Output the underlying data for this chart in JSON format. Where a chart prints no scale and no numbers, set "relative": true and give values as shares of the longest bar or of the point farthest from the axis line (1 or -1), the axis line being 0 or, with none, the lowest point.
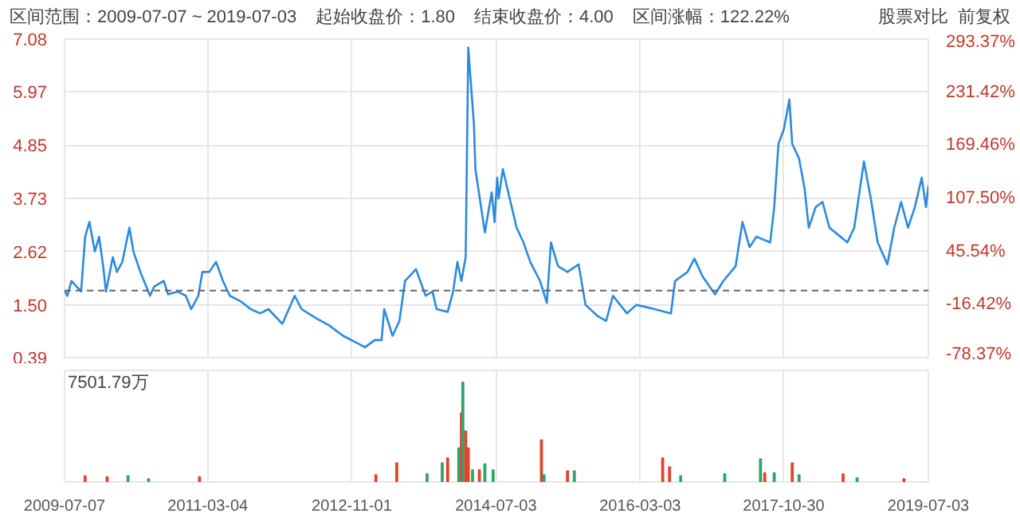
{
  "chart_data": [
    {
      "type": "line",
      "title": "区间范围：2009-07-07 ~ 2019-07-03",
      "annotations": [
        "起始收盘价：1.80",
        "结束收盘价：4.00",
        "区间涨幅：122.22%",
        "股票对比",
        "前复权"
      ],
      "x": [
        "2009-07-07",
        "2009-07-19",
        "2009-08-05",
        "2009-09-15",
        "2009-10-02",
        "2009-10-20",
        "2009-11-12",
        "2009-11-30",
        "2009-12-17",
        "2009-12-29",
        "2010-01-27",
        "2010-02-13",
        "2010-03-08",
        "2010-04-07",
        "2010-04-24",
        "2010-05-23",
        "2010-07-03",
        "2010-07-20",
        "2010-08-30",
        "2010-09-17",
        "2010-10-27",
        "2010-12-01",
        "2010-12-24",
        "2011-01-23",
        "2011-02-09",
        "2011-03-10",
        "2011-04-08",
        "2011-05-07",
        "2011-06-05",
        "2011-07-22",
        "2011-09-01",
        "2011-10-11",
        "2011-11-15",
        "2012-01-13",
        "2012-03-05",
        "2012-04-03",
        "2012-05-31",
        "2012-07-28",
        "2012-09-25",
        "2012-11-22",
        "2012-12-27",
        "2013-02-06",
        "2013-03-07",
        "2013-03-18",
        "2013-04-22",
        "2013-05-21",
        "2013-06-14",
        "2013-07-30",
        "2013-09-09",
        "2013-10-08",
        "2013-10-25",
        "2013-12-11",
        "2014-01-03",
        "2014-01-21",
        "2014-02-07",
        "2014-02-25",
        "2014-03-08",
        "2014-04-01",
        "2014-04-07",
        "2014-05-17",
        "2014-06-15",
        "2014-06-27",
        "2014-07-08",
        "2014-07-14",
        "2014-08-01",
        "2014-08-30",
        "2014-09-28",
        "2014-10-27",
        "2014-11-25",
        "2015-01-05",
        "2015-02-03",
        "2015-02-20",
        "2015-03-22",
        "2015-05-01",
        "2015-06-17",
        "2015-07-16",
        "2015-09-06",
        "2015-10-11",
        "2015-11-09",
        "2016-01-07",
        "2016-02-16",
        "2016-05-02",
        "2016-07-11",
        "2016-07-28",
        "2016-09-19",
        "2016-10-18",
        "2016-11-22",
        "2017-01-13",
        "2017-02-17",
        "2017-04-10",
        "2017-05-09",
        "2017-06-08",
        "2017-07-07",
        "2017-09-03",
        "2017-09-20",
        "2017-10-08",
        "2017-10-31",
        "2017-11-23",
        "2017-12-05",
        "2018-01-03",
        "2018-01-26",
        "2018-02-13",
        "2018-03-14",
        "2018-04-12",
        "2018-05-11",
        "2018-06-27",
        "2018-07-26",
        "2018-08-24",
        "2018-10-04",
        "2018-11-02",
        "2018-12-01",
        "2019-01-11",
        "2019-02-09",
        "2019-03-10",
        "2019-04-08",
        "2019-05-07",
        "2019-06-05",
        "2019-06-23",
        "2019-07-03"
      ],
      "series": [
        {
          "color": "#2a8ae0",
          "values": [
            1.8,
            1.69,
            2.0,
            1.78,
            2.93,
            3.24,
            2.62,
            2.93,
            2.31,
            1.78,
            2.5,
            2.19,
            2.4,
            3.12,
            2.62,
            2.19,
            1.69,
            1.88,
            2.0,
            1.72,
            1.78,
            1.69,
            1.41,
            1.69,
            2.19,
            2.19,
            2.4,
            2.0,
            1.69,
            1.57,
            1.41,
            1.32,
            1.41,
            1.1,
            1.69,
            1.41,
            1.23,
            1.07,
            0.85,
            0.7,
            0.61,
            0.76,
            0.76,
            1.41,
            0.85,
            1.16,
            2.0,
            2.25,
            1.69,
            1.78,
            1.41,
            1.35,
            1.78,
            2.4,
            2.0,
            2.5,
            6.9,
            5.28,
            4.35,
            3.02,
            3.86,
            3.24,
            4.17,
            3.73,
            4.35,
            3.73,
            3.12,
            2.81,
            2.4,
            2.0,
            1.54,
            2.81,
            2.31,
            2.19,
            2.35,
            1.5,
            1.26,
            1.16,
            1.69,
            1.32,
            1.5,
            1.41,
            1.32,
            2.0,
            2.19,
            2.47,
            2.09,
            1.72,
            2.0,
            2.31,
            3.24,
            2.71,
            2.93,
            2.81,
            3.55,
            4.88,
            5.19,
            5.81,
            4.88,
            4.57,
            3.95,
            3.12,
            3.55,
            3.66,
            3.12,
            2.93,
            2.81,
            3.12,
            4.51,
            3.73,
            2.81,
            2.35,
            3.12,
            3.66,
            3.12,
            3.55,
            4.17,
            3.55,
            4.0
          ]
        }
      ],
      "xlim": [
        "2009-07-07",
        "2019-07-03"
      ],
      "xticks": [
        "2009-07-07",
        "2011-03-04",
        "2012-11-01",
        "2014-07-03",
        "2016-03-03",
        "2017-10-30",
        "2019-07-03"
      ],
      "ylim": [
        0.39,
        7.08
      ],
      "yticks": [
        0.39,
        {
          "value": 1.5,
          "label": "1.50"
        },
        2.62,
        3.73,
        4.85,
        5.97,
        7.08
      ],
      "y2lim": [
        -78.37,
        293.37
      ],
      "y2ticks": [
        {
          "value": -78.37,
          "label": "-78.37%"
        },
        {
          "value": -16.42,
          "label": "-16.42%"
        },
        {
          "value": 45.54,
          "label": "45.54%"
        },
        {
          "value": 107.5,
          "label": "107.50%"
        },
        {
          "value": 169.46,
          "label": "169.46%"
        },
        {
          "value": 231.42,
          "label": "231.42%"
        },
        {
          "value": 293.37,
          "label": "293.37%"
        }
      ],
      "ref_lines": [
        {
          "axis": "y",
          "value": 1.8,
          "color": "#666666",
          "line_style": "dashed"
        }
      ],
      "grid": true,
      "tick_labels": "y"
    },
    {
      "type": "bar",
      "relative": true,
      "annotations": [
        "7501.79万"
      ],
      "x": [
        "2009-10-02",
        "2010-01-03",
        "2010-04-01",
        "2010-06-27",
        "2011-01-28",
        "2013-02-11",
        "2013-05-10",
        "2013-09-15",
        "2013-11-18",
        "2013-12-11",
        "2014-01-27",
        "2014-02-07",
        "2014-02-13",
        "2014-02-25",
        "2014-03-08",
        "2014-03-26",
        "2014-04-24",
        "2014-05-17",
        "2014-06-21",
        "2015-01-11",
        "2015-01-22",
        "2015-05-01",
        "2015-05-30",
        "2016-06-06",
        "2016-07-05",
        "2016-08-21",
        "2017-02-23",
        "2017-07-24",
        "2017-08-11",
        "2017-09-20",
        "2017-12-05",
        "2018-01-03",
        "2018-07-08",
        "2018-09-05",
        "2019-03-22"
      ],
      "values": [
        0.06,
        0.05,
        0.06,
        0.03,
        0.05,
        0.07,
        0.19,
        0.08,
        0.19,
        0.24,
        0.34,
        0.69,
        1.0,
        0.51,
        0.34,
        0.12,
        0.12,
        0.18,
        0.12,
        0.42,
        0.07,
        0.11,
        0.11,
        0.24,
        0.15,
        0.06,
        0.08,
        0.23,
        0.09,
        0.09,
        0.19,
        0.07,
        0.08,
        0.04,
        0.03
      ],
      "colors": [
        "#e0452b",
        "#e0452b",
        "#2fa56b",
        "#2fa56b",
        "#e0452b",
        "#e0452b",
        "#e0452b",
        "#2fa56b",
        "#2fa56b",
        "#e0452b",
        "#2fa56b",
        "#e0452b",
        "#2fa56b",
        "#e0452b",
        "#e0452b",
        "#2fa56b",
        "#e0452b",
        "#2fa56b",
        "#2fa56b",
        "#e0452b",
        "#2fa56b",
        "#e0452b",
        "#2fa56b",
        "#e0452b",
        "#e0452b",
        "#2fa56b",
        "#2fa56b",
        "#2fa56b",
        "#e0452b",
        "#2fa56b",
        "#e0452b",
        "#2fa56b",
        "#e0452b",
        "#2fa56b",
        "#e0452b"
      ],
      "xlim": [
        "2009-07-07",
        "2019-07-03"
      ],
      "xticks": [
        "2009-07-07",
        "2011-03-04",
        "2012-11-01",
        "2014-07-03",
        "2016-03-03",
        "2017-10-30",
        "2019-07-03"
      ],
      "grid": "x",
      "tick_labels": "x"
    }
  ]
}
